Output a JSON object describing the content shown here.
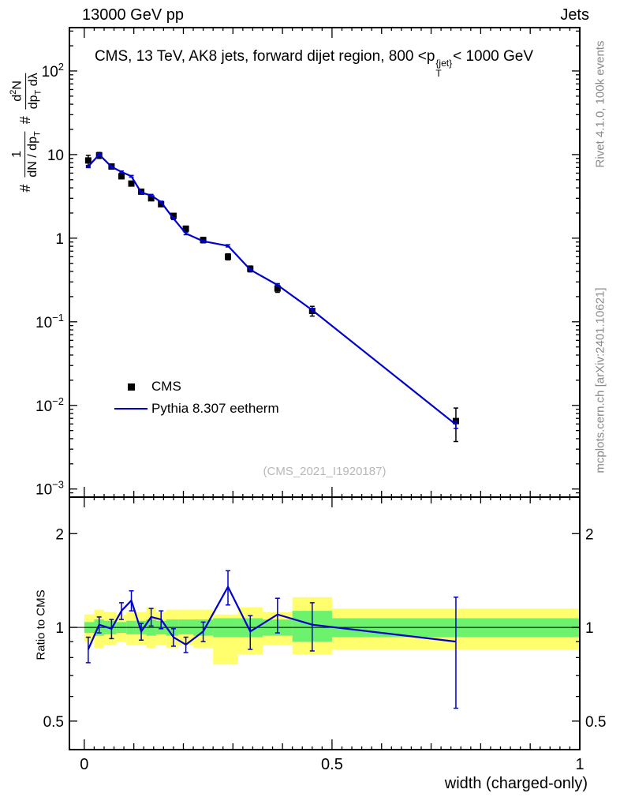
{
  "header": {
    "left": "13000 GeV pp",
    "right": "Jets"
  },
  "title": {
    "pre": "CMS, 13 TeV, AK8 jets, forward dijet region, 800 <p",
    "sup": "{jet}",
    "sub": "T",
    "post": "< 1000 GeV"
  },
  "axis": {
    "x_label": "width (charged-only)",
    "ratio_label": "Ratio to CMS",
    "y_label": {
      "hash1": "#",
      "f1_num": "1",
      "f1_den_a": "dN / dp",
      "f1_den_sub": "T",
      "hash2": "#",
      "f2_num_a": "d",
      "f2_num_sup": "2",
      "f2_num_b": "N",
      "f2_den_a": "dp",
      "f2_den_sub": "T",
      "f2_den_b": " dλ"
    }
  },
  "side_notes": {
    "top": "Rivet 4.1.0,  100k events",
    "bottom": "mcplots.cern.ch [arXiv:2401.10621]"
  },
  "watermark": "(CMS_2021_I1920187)",
  "legend": [
    {
      "label": "CMS"
    },
    {
      "label": "Pythia 8.307 eetherm"
    }
  ],
  "colors": {
    "mc": "#0000cc",
    "data": "#000000",
    "band_outer": "#ffff6e",
    "band_inner": "#6cf26c",
    "gray": "#8a8a8a",
    "watermark": "#b8b8b8"
  },
  "chart_data": {
    "type": "line",
    "title": "CMS, 13 TeV, AK8 jets, forward dijet region, 800 <p_T^{jet}< 1000 GeV",
    "xlabel": "width (charged-only)",
    "ylabel": "# 1/(dN/dp_T) # d²N/(dp_T dλ)",
    "legend_position": "middle-left",
    "grid": false,
    "x": [
      0.008,
      0.03,
      0.055,
      0.075,
      0.095,
      0.115,
      0.135,
      0.155,
      0.18,
      0.205,
      0.24,
      0.29,
      0.335,
      0.39,
      0.46,
      0.75
    ],
    "series": [
      {
        "name": "CMS",
        "marker": "square",
        "color": "#000000",
        "values": [
          8.5,
          9.8,
          7.2,
          5.5,
          4.5,
          3.6,
          3.0,
          2.55,
          1.85,
          1.3,
          0.95,
          0.6,
          0.43,
          0.25,
          0.135,
          0.0065
        ],
        "errors": [
          1.3,
          0.8,
          0.5,
          0.35,
          0.28,
          0.22,
          0.18,
          0.15,
          0.11,
          0.09,
          0.07,
          0.05,
          0.035,
          0.025,
          0.018,
          0.0028
        ]
      },
      {
        "name": "Pythia 8.307 eetherm",
        "marker": "none",
        "color": "#0000cc",
        "values": [
          7.2,
          10.0,
          7.15,
          6.2,
          5.5,
          3.5,
          3.25,
          2.7,
          1.72,
          1.14,
          0.92,
          0.81,
          0.42,
          0.275,
          0.138,
          0.0059
        ],
        "errors": [
          0.22,
          0.26,
          0.2,
          0.16,
          0.13,
          0.1,
          0.09,
          0.07,
          0.05,
          0.04,
          0.03,
          0.025,
          0.015,
          0.011,
          0.007,
          0.0006
        ]
      }
    ],
    "ratio_panel": {
      "label": "Ratio to CMS",
      "values": [
        0.85,
        1.02,
        0.99,
        1.13,
        1.22,
        0.97,
        1.08,
        1.06,
        0.93,
        0.88,
        0.97,
        1.35,
        0.97,
        1.1,
        1.02,
        0.9
      ],
      "errors": [
        0.08,
        0.06,
        0.07,
        0.07,
        0.09,
        0.06,
        0.07,
        0.07,
        0.06,
        0.05,
        0.07,
        0.17,
        0.12,
        0.14,
        0.18,
        0.35
      ],
      "bands": {
        "outer": [
          [
            0.0,
            0.02,
            0.9,
            1.1
          ],
          [
            0.02,
            0.04,
            0.86,
            1.14
          ],
          [
            0.04,
            0.065,
            0.88,
            1.12
          ],
          [
            0.065,
            0.085,
            0.9,
            1.1
          ],
          [
            0.085,
            0.105,
            0.88,
            1.12
          ],
          [
            0.105,
            0.125,
            0.88,
            1.12
          ],
          [
            0.125,
            0.145,
            0.86,
            1.16
          ],
          [
            0.145,
            0.165,
            0.88,
            1.12
          ],
          [
            0.165,
            0.19,
            0.86,
            1.14
          ],
          [
            0.19,
            0.22,
            0.88,
            1.14
          ],
          [
            0.22,
            0.26,
            0.86,
            1.14
          ],
          [
            0.26,
            0.31,
            0.76,
            1.1
          ],
          [
            0.31,
            0.36,
            0.82,
            1.16
          ],
          [
            0.36,
            0.42,
            0.88,
            1.12
          ],
          [
            0.42,
            0.5,
            0.82,
            1.25
          ],
          [
            0.5,
            1.0,
            0.85,
            1.15
          ]
        ],
        "inner": [
          [
            0.0,
            0.02,
            0.96,
            1.04
          ],
          [
            0.02,
            0.04,
            0.94,
            1.06
          ],
          [
            0.04,
            0.065,
            0.95,
            1.05
          ],
          [
            0.065,
            0.085,
            0.96,
            1.04
          ],
          [
            0.085,
            0.105,
            0.95,
            1.05
          ],
          [
            0.105,
            0.125,
            0.95,
            1.05
          ],
          [
            0.125,
            0.145,
            0.94,
            1.06
          ],
          [
            0.145,
            0.165,
            0.95,
            1.05
          ],
          [
            0.165,
            0.19,
            0.94,
            1.06
          ],
          [
            0.19,
            0.22,
            0.95,
            1.06
          ],
          [
            0.22,
            0.26,
            0.94,
            1.06
          ],
          [
            0.26,
            0.31,
            0.93,
            1.07
          ],
          [
            0.31,
            0.36,
            0.93,
            1.07
          ],
          [
            0.36,
            0.42,
            0.94,
            1.06
          ],
          [
            0.42,
            0.5,
            0.9,
            1.13
          ],
          [
            0.5,
            1.0,
            0.93,
            1.07
          ]
        ]
      }
    },
    "axes": {
      "x": {
        "min": -0.03,
        "max": 1.0,
        "ticks": [
          {
            "v": 0,
            "label": "0"
          },
          {
            "v": 0.5,
            "label": "0.5"
          },
          {
            "v": 1,
            "label": "1"
          }
        ]
      },
      "y_main": {
        "scale": "log",
        "min": 0.0008,
        "max": 330,
        "ticks": [
          {
            "v": 100,
            "base": "10",
            "exp": "2"
          },
          {
            "v": 10,
            "base": "10"
          },
          {
            "v": 1,
            "base": "1"
          },
          {
            "v": 0.1,
            "base": "10",
            "exp": "−1"
          },
          {
            "v": 0.01,
            "base": "10",
            "exp": "−2"
          },
          {
            "v": 0.001,
            "base": "10",
            "exp": "−3"
          }
        ]
      },
      "y_ratio": {
        "scale": "log",
        "min": 0.405,
        "max": 2.62,
        "ticks": [
          {
            "v": 2,
            "label": "2"
          },
          {
            "v": 1,
            "label": "1"
          },
          {
            "v": 0.5,
            "label": "0.5"
          }
        ],
        "minors": [
          0.6,
          0.7,
          0.8,
          0.9
        ]
      }
    }
  }
}
